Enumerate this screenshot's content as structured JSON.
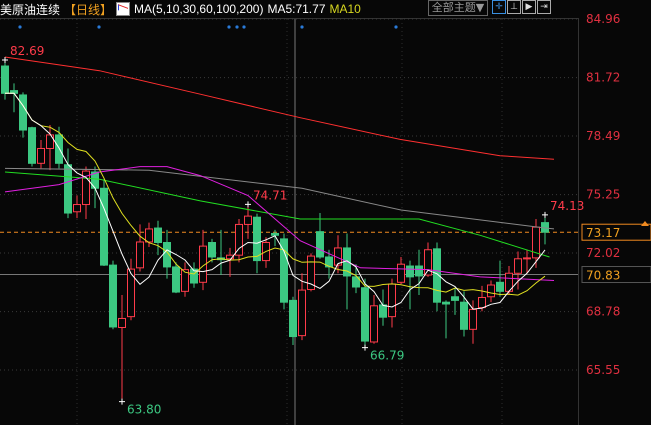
{
  "header": {
    "instrument": "美原油连续",
    "period": "【日线】",
    "ma_params": "MA(5,10,30,60,100,200)",
    "ma5_label": "MA5:71.77",
    "ma10_label": "MA10",
    "theme_button": "全部主题▼",
    "tools": [
      "crosshair-icon",
      "zoom-range-icon",
      "play-icon",
      "exit-icon"
    ]
  },
  "colors": {
    "up": "#ff3b4a",
    "down": "#3cc882",
    "ma5": "#ffffff",
    "ma10": "#e0e020",
    "ma30": "#e020e0",
    "ma60": "#22dd22",
    "ma100": "#888888",
    "ma200": "#ff3030",
    "axis_label": "#e03040",
    "current_price": "#f08a20"
  },
  "chart_data": {
    "type": "candlestick",
    "yaxis_ticks": [
      84.96,
      81.72,
      78.49,
      75.25,
      72.02,
      68.78,
      65.55
    ],
    "ylim": [
      63.0,
      85.4
    ],
    "current_price": 73.17,
    "crosshair_price": 70.83,
    "ohlc": [
      [
        82.36,
        82.69,
        80.5,
        80.85
      ],
      [
        81.0,
        81.4,
        79.8,
        80.85
      ],
      [
        80.76,
        80.9,
        78.4,
        78.82
      ],
      [
        78.95,
        79.0,
        76.8,
        76.98
      ],
      [
        76.98,
        78.27,
        76.7,
        77.8
      ],
      [
        77.8,
        79.1,
        76.6,
        78.55
      ],
      [
        78.55,
        79.0,
        76.7,
        76.98
      ],
      [
        76.9,
        77.8,
        73.95,
        74.23
      ],
      [
        74.3,
        75.2,
        73.95,
        74.7
      ],
      [
        74.7,
        76.8,
        73.9,
        76.55
      ],
      [
        76.5,
        76.8,
        74.5,
        75.6
      ],
      [
        75.6,
        76.1,
        71.3,
        71.35
      ],
      [
        71.35,
        71.6,
        67.8,
        67.93
      ],
      [
        67.9,
        69.7,
        63.8,
        68.4
      ],
      [
        68.5,
        71.7,
        68.3,
        71.13
      ],
      [
        71.2,
        73.6,
        71.0,
        72.63
      ],
      [
        72.63,
        73.7,
        72.35,
        73.35
      ],
      [
        73.4,
        73.8,
        71.9,
        72.6
      ],
      [
        72.6,
        73.3,
        70.6,
        71.25
      ],
      [
        71.25,
        71.5,
        69.8,
        69.86
      ],
      [
        69.9,
        71.5,
        69.6,
        71.1
      ],
      [
        71.13,
        71.5,
        70.1,
        70.36
      ],
      [
        70.4,
        73.3,
        69.97,
        72.4
      ],
      [
        72.6,
        72.8,
        71.5,
        71.8
      ],
      [
        71.75,
        73.3,
        70.8,
        71.65
      ],
      [
        71.7,
        72.3,
        70.7,
        71.9
      ],
      [
        71.9,
        73.9,
        71.5,
        73.6
      ],
      [
        73.6,
        74.71,
        72.8,
        74.06
      ],
      [
        74.0,
        74.2,
        70.9,
        71.6
      ],
      [
        71.6,
        72.9,
        71.2,
        72.6
      ],
      [
        73.1,
        73.3,
        72.4,
        73.0
      ],
      [
        72.8,
        73.1,
        68.9,
        69.3
      ],
      [
        69.4,
        69.6,
        66.93,
        67.4
      ],
      [
        67.45,
        70.9,
        67.2,
        69.97
      ],
      [
        70.0,
        72.0,
        69.9,
        71.85
      ],
      [
        73.2,
        74.23,
        71.7,
        71.8
      ],
      [
        71.8,
        72.2,
        70.6,
        71.25
      ],
      [
        71.35,
        73.0,
        70.9,
        72.3
      ],
      [
        72.3,
        73.1,
        68.9,
        70.75
      ],
      [
        70.7,
        71.4,
        69.8,
        70.14
      ],
      [
        70.1,
        70.6,
        66.79,
        67.15
      ],
      [
        67.1,
        69.7,
        67.0,
        69.1
      ],
      [
        69.15,
        70.0,
        68.0,
        68.47
      ],
      [
        68.5,
        70.6,
        67.9,
        70.3
      ],
      [
        70.4,
        71.8,
        70.3,
        71.4
      ],
      [
        71.3,
        71.6,
        68.9,
        70.7
      ],
      [
        71.3,
        72.2,
        69.7,
        70.75
      ],
      [
        70.8,
        72.6,
        70.7,
        72.2
      ],
      [
        72.25,
        72.6,
        68.8,
        69.3
      ],
      [
        69.3,
        69.4,
        67.3,
        69.2
      ],
      [
        69.6,
        70.1,
        68.6,
        69.4
      ],
      [
        69.3,
        69.9,
        67.4,
        67.8
      ],
      [
        67.8,
        69.4,
        67.0,
        68.9
      ],
      [
        69.0,
        70.2,
        68.8,
        69.56
      ],
      [
        69.6,
        70.5,
        69.3,
        70.25
      ],
      [
        70.4,
        71.6,
        69.6,
        69.9
      ],
      [
        69.9,
        71.3,
        69.7,
        70.9
      ],
      [
        70.9,
        72.1,
        70.0,
        71.7
      ],
      [
        71.7,
        72.2,
        70.9,
        71.75
      ],
      [
        71.75,
        73.9,
        71.2,
        73.45
      ],
      [
        73.7,
        74.13,
        72.5,
        73.17
      ]
    ],
    "ma_lines": {
      "ma200": [
        [
          0,
          82.86
        ],
        [
          10.5,
          82.1
        ],
        [
          21.7,
          80.8
        ],
        [
          32.8,
          79.5
        ],
        [
          43.9,
          78.3
        ],
        [
          55,
          77.4
        ],
        [
          61,
          77.2
        ]
      ],
      "ma100": [
        [
          0,
          76.7
        ],
        [
          16,
          76.6
        ],
        [
          33,
          75.6
        ],
        [
          44,
          74.4
        ],
        [
          60,
          73.4
        ],
        [
          61,
          73.35
        ]
      ],
      "ma60": [
        [
          0,
          76.5
        ],
        [
          10.5,
          76.1
        ],
        [
          21.7,
          74.9
        ],
        [
          32.8,
          73.9
        ],
        [
          46,
          73.9
        ],
        [
          52.8,
          73.0
        ],
        [
          60.5,
          71.8
        ]
      ],
      "ma30": [
        [
          0,
          75.4
        ],
        [
          6,
          75.8
        ],
        [
          10.5,
          76.5
        ],
        [
          15,
          76.8
        ],
        [
          18,
          76.8
        ],
        [
          21.7,
          76.3
        ],
        [
          27,
          75.2
        ],
        [
          32.8,
          72.7
        ],
        [
          39.5,
          71.2
        ],
        [
          47,
          71.1
        ],
        [
          52.8,
          70.7
        ],
        [
          61,
          70.5
        ]
      ]
    },
    "annotations": [
      {
        "text": "82.69",
        "index": 0,
        "price": 82.69,
        "kind": "high"
      },
      {
        "text": "63.80",
        "index": 13,
        "price": 63.8,
        "kind": "low"
      },
      {
        "text": "74.71",
        "index": 27,
        "price": 74.71,
        "kind": "high"
      },
      {
        "text": "66.79",
        "index": 40,
        "price": 66.79,
        "kind": "low"
      },
      {
        "text": "74.13",
        "index": 60,
        "price": 74.13,
        "kind": "high"
      }
    ]
  }
}
